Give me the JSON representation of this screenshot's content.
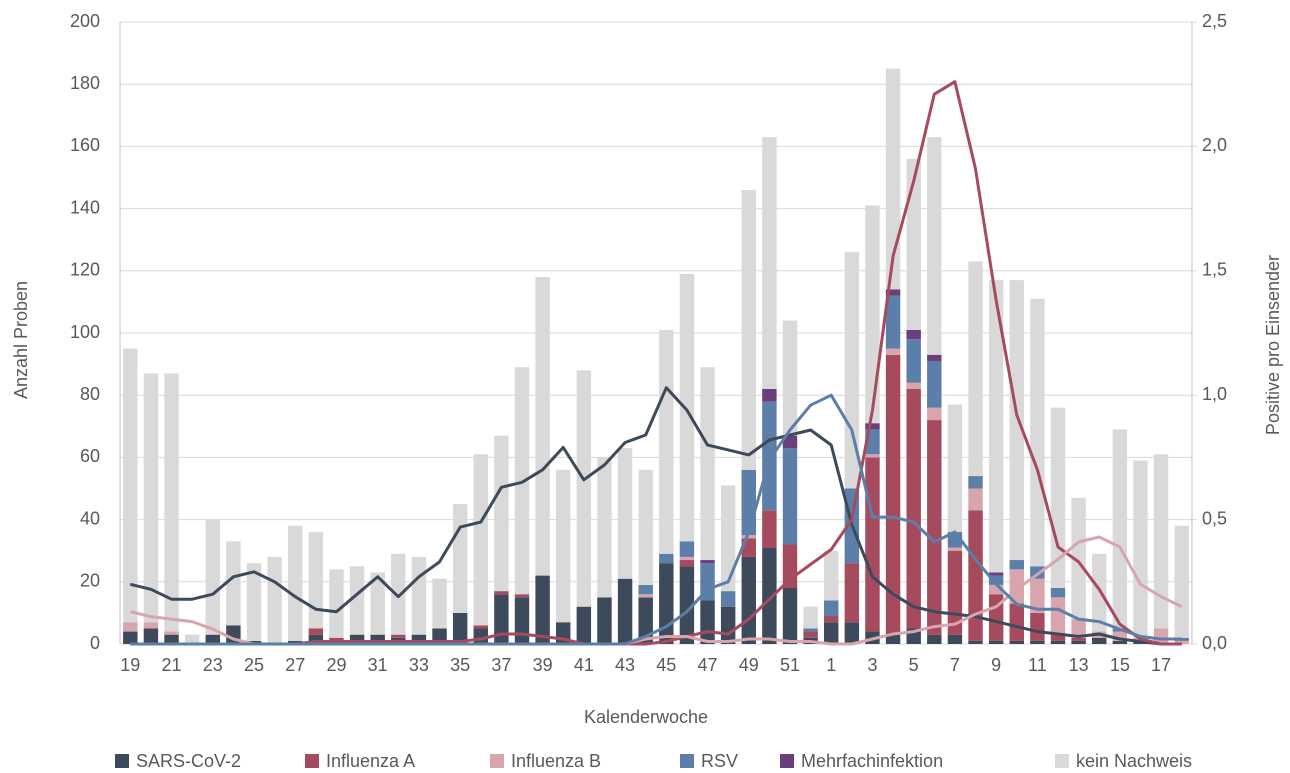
{
  "chart_data": {
    "type": "bar-line",
    "categories": [
      "19",
      null,
      "21",
      null,
      "23",
      null,
      "25",
      null,
      "27",
      null,
      "29",
      null,
      "31",
      null,
      "33",
      null,
      "35",
      null,
      "37",
      null,
      "39",
      null,
      "41",
      null,
      "43",
      null,
      "45",
      null,
      "47",
      null,
      "49",
      null,
      "51",
      null,
      "1",
      null,
      "3",
      null,
      "5",
      null,
      "7",
      null,
      "9",
      null,
      "11",
      null,
      "13",
      null,
      "15",
      null,
      "17",
      null
    ],
    "x_label": "Kalenderwoche",
    "y_label": "Anzahl Proben",
    "y2_label": "Positive pro Einsender",
    "ylim": [
      0,
      200
    ],
    "yticks": [
      0,
      20,
      40,
      60,
      80,
      100,
      120,
      140,
      160,
      180,
      200
    ],
    "y2lim": [
      0,
      2.5
    ],
    "y2ticks": [
      {
        "value": 0,
        "label": "0,0"
      },
      {
        "value": 0.5,
        "label": "0,5"
      },
      {
        "value": 1,
        "label": "1,0"
      },
      {
        "value": 1.5,
        "label": "1,5"
      },
      {
        "value": 2,
        "label": "2,0"
      },
      {
        "value": 2.5,
        "label": "2,5"
      }
    ],
    "grid": true,
    "legend": "bottom",
    "series": [
      {
        "name": "SARS-CoV-2",
        "color": "#3d4a5c",
        "values": [
          4,
          5,
          3,
          0,
          3,
          6,
          1,
          0,
          1,
          3,
          1,
          3,
          3,
          2,
          3,
          5,
          10,
          5,
          16,
          15,
          22,
          7,
          12,
          15,
          21,
          15,
          26,
          25,
          14,
          12,
          28,
          31,
          18,
          2,
          7,
          7,
          4,
          3,
          5,
          3,
          3,
          1,
          1,
          1,
          1,
          1,
          1,
          2,
          1,
          1,
          0,
          0
        ],
        "line_values": [
          0.24,
          0.22,
          0.18,
          0.18,
          0.2,
          0.27,
          0.29,
          0.25,
          0.19,
          0.14,
          0.13,
          0.2,
          0.27,
          0.19,
          0.27,
          0.33,
          0.47,
          0.49,
          0.63,
          0.65,
          0.7,
          0.79,
          0.66,
          0.72,
          0.81,
          0.84,
          1.03,
          0.94,
          0.8,
          0.78,
          0.76,
          0.82,
          0.84,
          0.86,
          0.8,
          0.48,
          0.27,
          0.2,
          0.15,
          0.13,
          0.12,
          0.11,
          0.09,
          0.07,
          0.05,
          0.04,
          0.03,
          0.04,
          0.02,
          0.01,
          0,
          0
        ]
      },
      {
        "name": "Influenza A",
        "color": "#a64a5e",
        "values": [
          0,
          0,
          0,
          0,
          0,
          0,
          0,
          0,
          0,
          2,
          1,
          0,
          0,
          1,
          0,
          0,
          0,
          1,
          1,
          1,
          0,
          0,
          0,
          0,
          0,
          0,
          0,
          2,
          0,
          0,
          6,
          12,
          14,
          2,
          2,
          19,
          56,
          90,
          77,
          69,
          27,
          42,
          15,
          12,
          9,
          2,
          1,
          0,
          0,
          0,
          0,
          0
        ],
        "line_values": [
          0,
          0,
          0,
          0,
          0,
          0,
          0,
          0,
          0,
          0.01,
          0.01,
          0.01,
          0.01,
          0.01,
          0.01,
          0.01,
          0.01,
          0.02,
          0.04,
          0.04,
          0.03,
          0.02,
          0,
          0,
          0,
          0,
          0.01,
          0.03,
          0.05,
          0.04,
          0.1,
          0.18,
          0.26,
          0.32,
          0.38,
          0.5,
          0.94,
          1.56,
          1.86,
          2.21,
          2.26,
          1.91,
          1.38,
          0.92,
          0.7,
          0.39,
          0.33,
          0.22,
          0.08,
          0.02,
          0,
          0
        ]
      },
      {
        "name": "Influenza B",
        "color": "#d8a4ad",
        "values": [
          3,
          2,
          1,
          0,
          0,
          0,
          0,
          0,
          0,
          0,
          0,
          0,
          0,
          0,
          0,
          0,
          0,
          0,
          0,
          0,
          0,
          0,
          0,
          0,
          0,
          1,
          0,
          1,
          0,
          0,
          1,
          0,
          0,
          0,
          0,
          0,
          1,
          2,
          2,
          4,
          1,
          7,
          3,
          11,
          11,
          12,
          6,
          2,
          3,
          1,
          5,
          1
        ],
        "line_values": [
          0.13,
          0.11,
          0.1,
          0.09,
          0.06,
          0.02,
          0,
          0,
          0,
          0,
          0,
          0,
          0,
          0,
          0,
          0,
          0,
          0,
          0,
          0,
          0,
          0,
          0,
          0,
          0,
          0.02,
          0.03,
          0.03,
          0.01,
          0.01,
          0.02,
          0.02,
          0.01,
          0.01,
          0,
          0,
          0.02,
          0.04,
          0.05,
          0.07,
          0.08,
          0.12,
          0.15,
          0.22,
          0.28,
          0.34,
          0.41,
          0.43,
          0.39,
          0.24,
          0.19,
          0.15
        ]
      },
      {
        "name": "RSV",
        "color": "#5b7fa8",
        "values": [
          0,
          0,
          0,
          0,
          0,
          0,
          0,
          0,
          0,
          0,
          0,
          0,
          0,
          0,
          0,
          0,
          0,
          0,
          0,
          0,
          0,
          0,
          0,
          0,
          0,
          3,
          3,
          5,
          12,
          5,
          21,
          35,
          31,
          1,
          5,
          24,
          8,
          17,
          14,
          15,
          5,
          4,
          3,
          3,
          4,
          3,
          0,
          0,
          1,
          0,
          0,
          1
        ],
        "line_values": [
          0,
          0,
          0,
          0,
          0,
          0,
          0,
          0,
          0,
          0,
          0,
          0,
          0,
          0,
          0,
          0,
          0,
          0,
          0,
          0,
          0,
          0,
          0,
          0,
          0,
          0.03,
          0.07,
          0.13,
          0.22,
          0.25,
          0.45,
          0.74,
          0.86,
          0.96,
          1.0,
          0.86,
          0.51,
          0.51,
          0.49,
          0.41,
          0.45,
          0.34,
          0.24,
          0.16,
          0.14,
          0.14,
          0.1,
          0.09,
          0.06,
          0.03,
          0.02,
          0.02
        ]
      },
      {
        "name": "Mehrfachinfektion",
        "color": "#6b3f7c",
        "values": [
          0,
          0,
          0,
          0,
          0,
          0,
          0,
          0,
          0,
          0,
          0,
          0,
          0,
          0,
          0,
          0,
          0,
          0,
          0,
          0,
          0,
          0,
          0,
          0,
          0,
          0,
          0,
          0,
          1,
          0,
          0,
          4,
          4,
          0,
          0,
          0,
          2,
          2,
          3,
          2,
          0,
          0,
          1,
          0,
          0,
          0,
          0,
          0,
          0,
          0,
          0,
          0
        ]
      },
      {
        "name": "kein Nachweis",
        "color": "#d9d9d9",
        "values": [
          88,
          80,
          83,
          3,
          37,
          27,
          25,
          28,
          37,
          31,
          22,
          22,
          20,
          26,
          25,
          16,
          35,
          55,
          50,
          73,
          96,
          49,
          76,
          45,
          42,
          37,
          72,
          86,
          62,
          34,
          90,
          81,
          37,
          7,
          16,
          76,
          70,
          71,
          55,
          70,
          41,
          69,
          94,
          90,
          86,
          58,
          39,
          25,
          64,
          57,
          56,
          36
        ]
      }
    ]
  }
}
